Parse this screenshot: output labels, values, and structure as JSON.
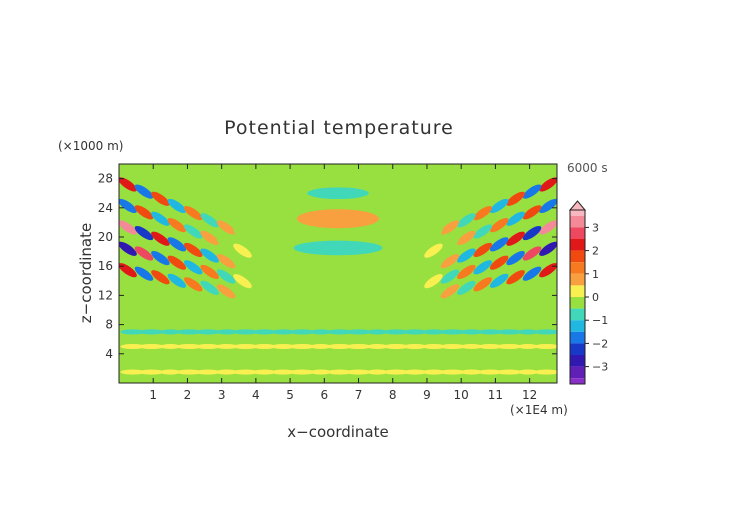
{
  "chart_data": {
    "type": "heatmap",
    "title": "Potential temperature",
    "xlabel": "x−coordinate",
    "ylabel": "z−coordinate",
    "x_unit": "(×1E4 m)",
    "y_unit": "(×1000 m)",
    "time_label": "6000 s",
    "xlim": [
      0,
      12.8
    ],
    "ylim": [
      0,
      30
    ],
    "x_ticks": [
      1,
      2,
      3,
      4,
      5,
      6,
      7,
      8,
      9,
      10,
      11,
      12
    ],
    "y_ticks": [
      4,
      8,
      12,
      16,
      20,
      24,
      28
    ],
    "colorbar": {
      "range": [
        -3.75,
        3.75
      ],
      "ticks": [
        3,
        2,
        1,
        0,
        -1,
        -2,
        -3
      ],
      "max_arrow": true,
      "levels": [
        {
          "from": 3.5,
          "to": 3.75,
          "color": "#f9b8c0"
        },
        {
          "from": 3.0,
          "to": 3.5,
          "color": "#f48a98"
        },
        {
          "from": 2.5,
          "to": 3.0,
          "color": "#ee4860"
        },
        {
          "from": 2.0,
          "to": 2.5,
          "color": "#e01818"
        },
        {
          "from": 1.5,
          "to": 2.0,
          "color": "#f04a10"
        },
        {
          "from": 1.0,
          "to": 1.5,
          "color": "#f87a20"
        },
        {
          "from": 0.5,
          "to": 1.0,
          "color": "#f8a040"
        },
        {
          "from": 0.0,
          "to": 0.5,
          "color": "#f8f050"
        },
        {
          "from": -0.5,
          "to": 0.0,
          "color": "#98e040"
        },
        {
          "from": -1.0,
          "to": -0.5,
          "color": "#40d8b8"
        },
        {
          "from": -1.5,
          "to": -1.0,
          "color": "#20b8e0"
        },
        {
          "from": -2.0,
          "to": -1.5,
          "color": "#1878e8"
        },
        {
          "from": -2.5,
          "to": -2.0,
          "color": "#1838c8"
        },
        {
          "from": -3.0,
          "to": -2.5,
          "color": "#3018b0"
        },
        {
          "from": -3.5,
          "to": -3.0,
          "color": "#6020b8"
        },
        {
          "from": -3.75,
          "to": -3.5,
          "color": "#8a30c8"
        }
      ]
    },
    "background_value": -0.25,
    "features": [
      {
        "kind": "lobe",
        "x": 6.4,
        "z": 22.5,
        "rx": 1.2,
        "rz": 1.3,
        "value": 0.8
      },
      {
        "kind": "lobe",
        "x": 6.4,
        "z": 18.5,
        "rx": 1.3,
        "rz": 1.0,
        "value": -0.7
      },
      {
        "kind": "lobe",
        "x": 6.4,
        "z": 26.0,
        "rx": 0.9,
        "rz": 0.8,
        "value": -0.7
      },
      {
        "kind": "band",
        "z": 7.0,
        "value": -0.7
      },
      {
        "kind": "band",
        "z": 5.0,
        "value": 0.3
      },
      {
        "kind": "band",
        "z": 1.5,
        "value": 0.3
      },
      {
        "kind": "wavefan",
        "side": "left",
        "center_x": 1.5,
        "center_z": 20,
        "max_amplitude": 3.0
      },
      {
        "kind": "wavefan",
        "side": "right",
        "center_x": 11.3,
        "center_z": 20,
        "max_amplitude": 3.0
      }
    ]
  }
}
